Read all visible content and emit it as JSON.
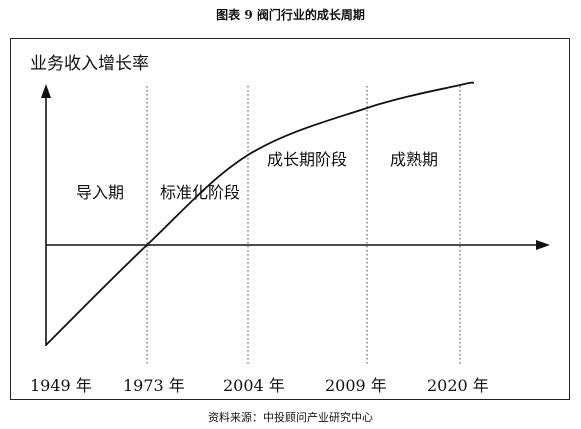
{
  "figure_title": "图表 9   阀门行业的成长周期",
  "source_note": "资料来源：中投顾问产业研究中心",
  "chart_data": {
    "type": "line",
    "title": "",
    "ylabel": "业务收入增长率",
    "xlabel": "",
    "x_ticks": [
      "1949 年",
      "1973 年",
      "2004 年",
      "2009 年",
      "2020 年"
    ],
    "stages": [
      "导入期",
      "标准化阶段",
      "成长期阶段",
      "成熟期"
    ],
    "series": [
      {
        "values": [
          {
            "x": 0.0,
            "y": -1.0
          },
          {
            "x": 1.0,
            "y": 0.0
          },
          {
            "x": 2.0,
            "y": 0.9
          },
          {
            "x": 3.0,
            "y": 1.37
          },
          {
            "x": 4.0,
            "y": 1.6
          },
          {
            "x": 4.15,
            "y": 1.62
          }
        ]
      }
    ],
    "grid": false
  }
}
